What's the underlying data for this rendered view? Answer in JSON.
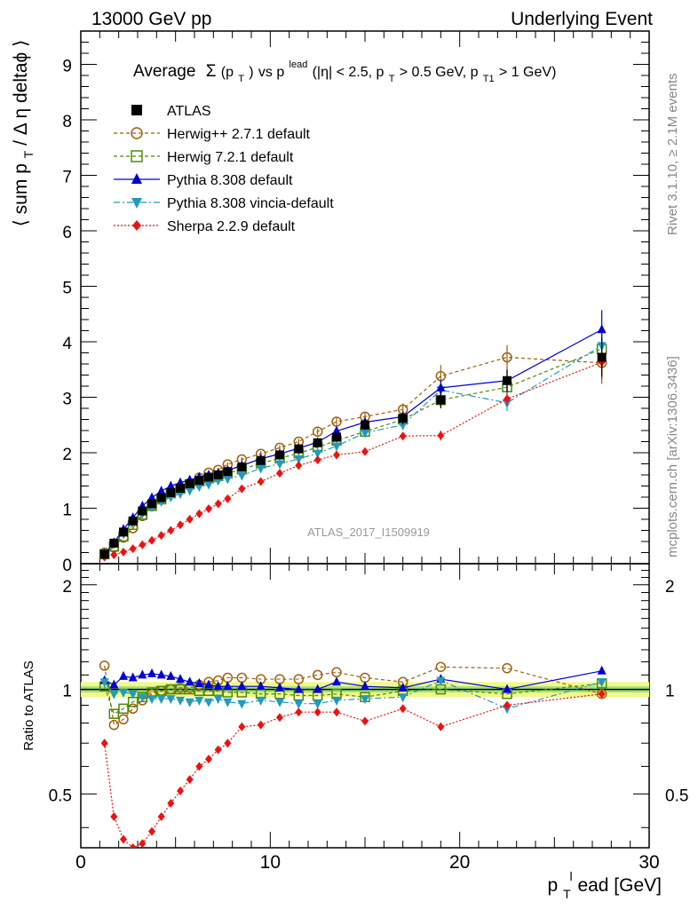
{
  "header": {
    "left": "13000 GeV pp",
    "right": "Underlying Event"
  },
  "side": {
    "rivet": "Rivet 3.1.10, ≥ 2.1M events",
    "mcplots": "mcplots.cern.ch [arXiv:1306.3436]"
  },
  "analysis_id": "ATLAS_2017_I1509919",
  "chart_data": [
    {
      "type": "line",
      "panel": "main",
      "title": {
        "average": "Average",
        "sigma": "Σ",
        "pt_open": "(p",
        "t_sub": "T",
        "close": ")",
        "vs": " vs p",
        "lead_sup": "lead",
        "cuts_a": " (|η| < 2.5, p",
        "cuts_b": " > 0.5 GeV, p",
        "t1_sub": "T1",
        "cuts_c": " > 1 GeV)"
      },
      "ylabel": {
        "part1": "⟨ sum p",
        "sub": "T",
        "part2": " / Δ η deltaϕ ⟩"
      },
      "ylim": [
        0,
        9.6
      ],
      "xlim": [
        0,
        30
      ],
      "yticks": [
        0,
        1,
        2,
        3,
        4,
        5,
        6,
        7,
        8,
        9
      ],
      "xticks": [
        0,
        10,
        20,
        30
      ],
      "legend_position": "top-left",
      "x": [
        1.25,
        1.75,
        2.25,
        2.75,
        3.25,
        3.75,
        4.25,
        4.75,
        5.25,
        5.75,
        6.25,
        6.75,
        7.25,
        7.75,
        8.5,
        9.5,
        10.5,
        11.5,
        12.5,
        13.5,
        15,
        17,
        19,
        22.5,
        27.5
      ],
      "series": [
        {
          "name": "ATLAS",
          "color": "#000000",
          "marker": "square",
          "values": [
            0.17,
            0.37,
            0.57,
            0.77,
            0.95,
            1.08,
            1.19,
            1.28,
            1.36,
            1.44,
            1.5,
            1.56,
            1.6,
            1.66,
            1.74,
            1.86,
            1.96,
            2.07,
            2.18,
            2.28,
            2.5,
            2.62,
            2.95,
            3.3,
            3.72
          ],
          "errors": [
            0.02,
            0.02,
            0.02,
            0.03,
            0.03,
            0.03,
            0.03,
            0.03,
            0.03,
            0.03,
            0.04,
            0.04,
            0.04,
            0.04,
            0.05,
            0.05,
            0.06,
            0.06,
            0.07,
            0.08,
            0.09,
            0.11,
            0.15,
            0.2,
            0.35
          ]
        },
        {
          "name": "Herwig++ 2.7.1 default",
          "color": "#a25f0c",
          "marker": "open-circle",
          "dash": "4,3",
          "values": [
            0.2,
            0.29,
            0.47,
            0.64,
            0.86,
            1.04,
            1.17,
            1.27,
            1.37,
            1.45,
            1.55,
            1.64,
            1.69,
            1.79,
            1.88,
            1.98,
            2.09,
            2.2,
            2.38,
            2.56,
            2.65,
            2.78,
            3.38,
            3.72,
            3.62
          ],
          "errors": [
            0.02,
            0.02,
            0.02,
            0.02,
            0.03,
            0.03,
            0.03,
            0.03,
            0.03,
            0.03,
            0.04,
            0.04,
            0.04,
            0.04,
            0.04,
            0.05,
            0.05,
            0.05,
            0.06,
            0.07,
            0.08,
            0.11,
            0.2,
            0.22,
            0.38
          ]
        },
        {
          "name": "Herwig 7.2.1 default",
          "color": "#4b8b0b",
          "marker": "open-square",
          "dash": "4,3",
          "values": [
            0.17,
            0.31,
            0.49,
            0.7,
            0.88,
            1.04,
            1.16,
            1.27,
            1.35,
            1.43,
            1.49,
            1.54,
            1.58,
            1.63,
            1.7,
            1.81,
            1.9,
            1.99,
            2.1,
            2.22,
            2.38,
            2.6,
            2.95,
            3.18,
            3.87
          ],
          "errors": [
            0.01,
            0.01,
            0.02,
            0.02,
            0.02,
            0.02,
            0.02,
            0.03,
            0.03,
            0.03,
            0.03,
            0.03,
            0.03,
            0.04,
            0.04,
            0.04,
            0.05,
            0.05,
            0.05,
            0.06,
            0.06,
            0.08,
            0.12,
            0.14,
            0.3
          ]
        },
        {
          "name": "Pythia 8.308 default",
          "color": "#0000d8",
          "marker": "triangle",
          "dash": "",
          "values": [
            0.18,
            0.38,
            0.62,
            0.83,
            1.04,
            1.19,
            1.31,
            1.4,
            1.46,
            1.51,
            1.56,
            1.6,
            1.63,
            1.68,
            1.77,
            1.89,
            1.98,
            2.08,
            2.19,
            2.39,
            2.55,
            2.65,
            3.17,
            3.3,
            4.22
          ],
          "errors": [
            0.01,
            0.02,
            0.02,
            0.02,
            0.02,
            0.03,
            0.03,
            0.03,
            0.03,
            0.03,
            0.03,
            0.04,
            0.04,
            0.04,
            0.04,
            0.05,
            0.05,
            0.06,
            0.06,
            0.07,
            0.08,
            0.1,
            0.14,
            0.2,
            0.35
          ]
        },
        {
          "name": "Pythia 8.308 vincia-default",
          "color": "#1f9bbf",
          "marker": "down-triangle",
          "dash": "7,3,2,3",
          "values": [
            0.18,
            0.36,
            0.56,
            0.75,
            0.9,
            1.02,
            1.12,
            1.2,
            1.26,
            1.32,
            1.39,
            1.43,
            1.5,
            1.53,
            1.59,
            1.72,
            1.8,
            1.89,
            1.99,
            2.12,
            2.36,
            2.5,
            3.13,
            2.9,
            3.93
          ],
          "errors": [
            0.01,
            0.01,
            0.02,
            0.02,
            0.02,
            0.02,
            0.02,
            0.03,
            0.03,
            0.03,
            0.03,
            0.03,
            0.03,
            0.04,
            0.04,
            0.04,
            0.05,
            0.05,
            0.05,
            0.06,
            0.07,
            0.09,
            0.12,
            0.15,
            0.3
          ]
        },
        {
          "name": "Sherpa 2.2.9 default",
          "color": "#ee1111",
          "marker": "diamond",
          "dash": "2,2",
          "values": [
            0.12,
            0.16,
            0.21,
            0.27,
            0.34,
            0.42,
            0.51,
            0.6,
            0.7,
            0.8,
            0.9,
            0.99,
            1.08,
            1.17,
            1.35,
            1.48,
            1.63,
            1.77,
            1.87,
            1.96,
            2.02,
            2.3,
            2.31,
            2.97,
            3.63
          ],
          "errors": [
            0.01,
            0.01,
            0.01,
            0.01,
            0.01,
            0.02,
            0.02,
            0.02,
            0.02,
            0.02,
            0.02,
            0.03,
            0.03,
            0.03,
            0.03,
            0.04,
            0.04,
            0.05,
            0.05,
            0.05,
            0.06,
            0.07,
            0.09,
            0.12,
            0.3
          ]
        }
      ]
    },
    {
      "type": "line",
      "panel": "ratio",
      "ylabel": "Ratio to ATLAS",
      "xlabel": {
        "p": "p",
        "sub": "T",
        "sup": "l",
        "rest": "ead [GeV]"
      },
      "ylim": [
        0.35,
        2.3
      ],
      "xlim": [
        0,
        30
      ],
      "yticks": [
        0.5,
        1,
        2
      ],
      "ytick_labels": [
        "0.5",
        "1",
        "2"
      ],
      "xticks": [
        0,
        10,
        20,
        30
      ],
      "reference_line": 1,
      "uncertainty_band": {
        "inner": 0.02,
        "outer": 0.05
      },
      "x": [
        1.25,
        1.75,
        2.25,
        2.75,
        3.25,
        3.75,
        4.25,
        4.75,
        5.25,
        5.75,
        6.25,
        6.75,
        7.25,
        7.75,
        8.5,
        9.5,
        10.5,
        11.5,
        12.5,
        13.5,
        15,
        17,
        19,
        22.5,
        27.5
      ],
      "series": [
        {
          "name": "Herwig++ 2.7.1 default",
          "color": "#a25f0c",
          "marker": "open-circle",
          "dash": "4,3",
          "values": [
            1.17,
            0.79,
            0.82,
            0.88,
            0.93,
            0.97,
            0.99,
            1.0,
            1.01,
            1.01,
            1.03,
            1.05,
            1.06,
            1.08,
            1.08,
            1.07,
            1.07,
            1.07,
            1.1,
            1.12,
            1.08,
            1.05,
            1.16,
            1.15,
            0.97
          ]
        },
        {
          "name": "Herwig 7.2.1 default",
          "color": "#4b8b0b",
          "marker": "open-square",
          "dash": "4,3",
          "values": [
            1.02,
            0.85,
            0.88,
            0.92,
            0.95,
            0.98,
            0.99,
            1.0,
            1.0,
            1.0,
            0.99,
            0.99,
            0.99,
            0.98,
            0.98,
            0.97,
            0.97,
            0.96,
            0.96,
            0.97,
            0.95,
            0.99,
            1.0,
            0.97,
            1.04
          ]
        },
        {
          "name": "Pythia 8.308 default",
          "color": "#0000d8",
          "marker": "triangle",
          "dash": "",
          "values": [
            1.06,
            1.03,
            1.09,
            1.08,
            1.1,
            1.11,
            1.1,
            1.09,
            1.07,
            1.05,
            1.04,
            1.03,
            1.02,
            1.02,
            1.02,
            1.02,
            1.01,
            1.0,
            1.0,
            1.05,
            1.02,
            1.01,
            1.07,
            1.0,
            1.13
          ]
        },
        {
          "name": "Pythia 8.308 vincia-default",
          "color": "#1f9bbf",
          "marker": "down-triangle",
          "dash": "7,3,2,3",
          "values": [
            1.05,
            0.97,
            0.98,
            0.97,
            0.95,
            0.94,
            0.94,
            0.94,
            0.93,
            0.92,
            0.93,
            0.92,
            0.94,
            0.92,
            0.91,
            0.93,
            0.92,
            0.91,
            0.91,
            0.93,
            0.94,
            0.95,
            1.06,
            0.88,
            1.05
          ]
        },
        {
          "name": "Sherpa 2.2.9 default",
          "color": "#ee1111",
          "marker": "diamond",
          "dash": "2,2",
          "values": [
            0.7,
            0.43,
            0.37,
            0.35,
            0.36,
            0.39,
            0.43,
            0.47,
            0.51,
            0.55,
            0.6,
            0.63,
            0.67,
            0.7,
            0.78,
            0.79,
            0.83,
            0.86,
            0.86,
            0.86,
            0.81,
            0.88,
            0.78,
            0.9,
            0.97
          ]
        }
      ]
    }
  ]
}
